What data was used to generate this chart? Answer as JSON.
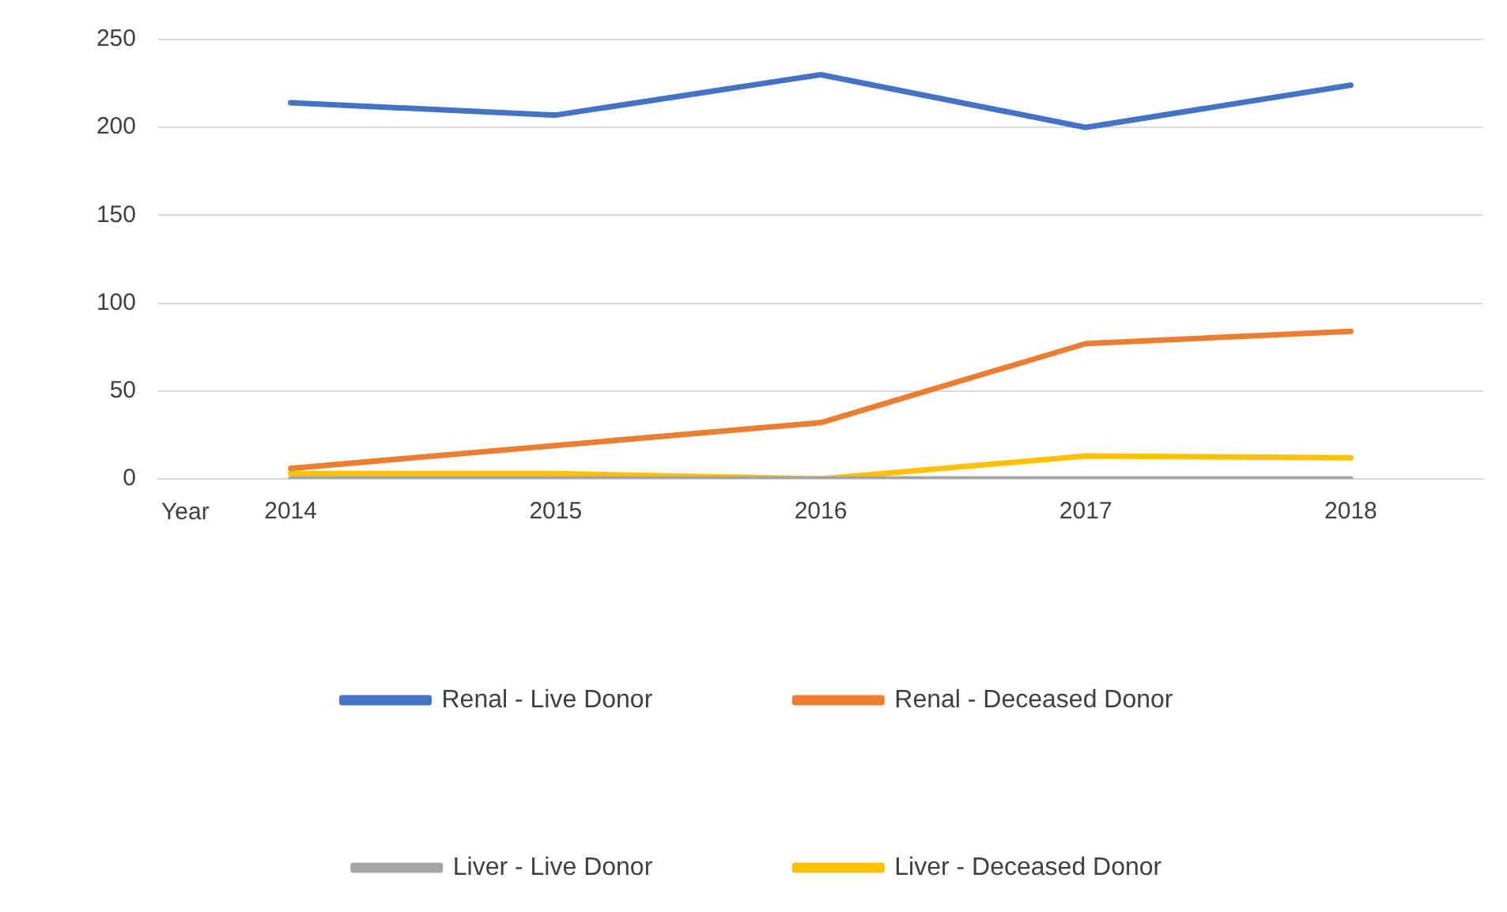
{
  "chart_data": {
    "type": "line",
    "xlabel": "Year",
    "categories": [
      "2014",
      "2015",
      "2016",
      "2017",
      "2018"
    ],
    "series": [
      {
        "name": "Renal - Live Donor",
        "color": "#4472c4",
        "values": [
          214,
          207,
          230,
          200,
          224
        ]
      },
      {
        "name": "Renal - Deceased Donor",
        "color": "#ed7d31",
        "values": [
          6,
          19,
          32,
          77,
          84
        ]
      },
      {
        "name": "Liver - Live Donor",
        "color": "#a5a5a5",
        "values": [
          0,
          0,
          0,
          0,
          0
        ]
      },
      {
        "name": "Liver - Deceased Donor",
        "color": "#ffc000",
        "values": [
          3,
          3,
          0,
          13,
          12
        ]
      }
    ],
    "ylim": [
      0,
      250
    ],
    "yticks": [
      0,
      50,
      100,
      150,
      200,
      250
    ],
    "grid": "y",
    "legend": "bottom",
    "marker": "none",
    "line_style": "solid"
  }
}
